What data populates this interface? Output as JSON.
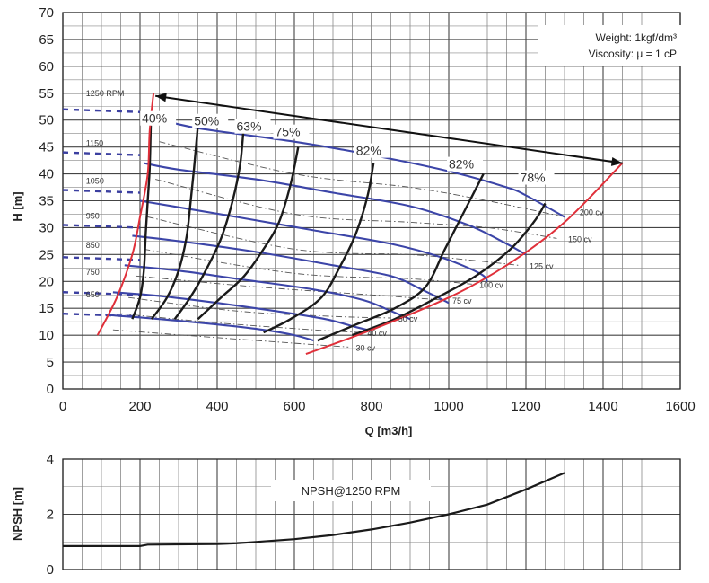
{
  "chart_data": [
    {
      "type": "line",
      "title": "",
      "xlabel": "Q [m3/h]",
      "ylabel": "H [m]",
      "xlim": [
        0,
        1600
      ],
      "ylim": [
        0,
        70
      ],
      "x_ticks": [
        "0",
        "200",
        "400",
        "600",
        "800",
        "1000",
        "1200",
        "1400",
        "1600"
      ],
      "y_ticks": [
        "0",
        "5",
        "10",
        "15",
        "20",
        "25",
        "30",
        "35",
        "40",
        "45",
        "50",
        "55",
        "60",
        "65",
        "70"
      ],
      "grid": true,
      "annotation": {
        "line1": "Weight: 1kgf/dm³",
        "line2": "Viscosity: μ = 1 cP"
      },
      "speed_curves": [
        {
          "name": "1250 RPM",
          "points": [
            [
              230,
              50.5
            ],
            [
              350,
              48.5
            ],
            [
              600,
              46
            ],
            [
              800,
              43.5
            ],
            [
              1000,
              40.5
            ],
            [
              1150,
              37.5
            ],
            [
              1200,
              36
            ],
            [
              1300,
              32
            ]
          ]
        },
        {
          "name": "1150",
          "points": [
            [
              210,
              42
            ],
            [
              300,
              40.8
            ],
            [
              500,
              39
            ],
            [
              700,
              36.5
            ],
            [
              900,
              34
            ],
            [
              1050,
              30.5
            ],
            [
              1150,
              27
            ],
            [
              1200,
              25
            ]
          ]
        },
        {
          "name": "1050",
          "points": [
            [
              200,
              35
            ],
            [
              300,
              33.8
            ],
            [
              450,
              32
            ],
            [
              650,
              29.5
            ],
            [
              850,
              27
            ],
            [
              980,
              24.5
            ],
            [
              1080,
              21.5
            ],
            [
              1100,
              20
            ]
          ]
        },
        {
          "name": "950",
          "points": [
            [
              180,
              28.5
            ],
            [
              300,
              27.5
            ],
            [
              500,
              25.5
            ],
            [
              700,
              23
            ],
            [
              850,
              21
            ],
            [
              930,
              18.5
            ],
            [
              1000,
              16
            ]
          ]
        },
        {
          "name": "850",
          "points": [
            [
              160,
              23
            ],
            [
              300,
              22
            ],
            [
              450,
              20.5
            ],
            [
              650,
              18.5
            ],
            [
              780,
              16.5
            ],
            [
              850,
              14.5
            ],
            [
              900,
              13
            ]
          ]
        },
        {
          "name": "750",
          "points": [
            [
              130,
              18
            ],
            [
              250,
              17.3
            ],
            [
              400,
              16
            ],
            [
              550,
              14.5
            ],
            [
              680,
              13
            ],
            [
              760,
              11.5
            ],
            [
              790,
              11
            ]
          ]
        },
        {
          "name": "650",
          "points": [
            [
              110,
              13.8
            ],
            [
              250,
              13
            ],
            [
              400,
              12
            ],
            [
              520,
              11
            ],
            [
              600,
              10
            ],
            [
              650,
              9
            ]
          ]
        }
      ],
      "efficiency_curves": [
        {
          "name": "40%",
          "points": [
            [
              180,
              13
            ],
            [
              200,
              17
            ],
            [
              210,
              22
            ],
            [
              215,
              29
            ],
            [
              220,
              35
            ],
            [
              225,
              41
            ],
            [
              228,
              49
            ]
          ]
        },
        {
          "name": "50%",
          "points": [
            [
              230,
              13
            ],
            [
              270,
              17
            ],
            [
              300,
              22
            ],
            [
              320,
              28
            ],
            [
              330,
              34
            ],
            [
              340,
              41
            ],
            [
              350,
              49
            ]
          ]
        },
        {
          "name": "63%",
          "points": [
            [
              290,
              13
            ],
            [
              330,
              17
            ],
            [
              370,
              22
            ],
            [
              410,
              28
            ],
            [
              440,
              35
            ],
            [
              460,
              42
            ],
            [
              470,
              50
            ]
          ]
        },
        {
          "name": "75%",
          "points": [
            [
              350,
              13
            ],
            [
              410,
              17
            ],
            [
              470,
              21
            ],
            [
              520,
              26
            ],
            [
              560,
              31
            ],
            [
              590,
              38
            ],
            [
              610,
              45
            ]
          ]
        },
        {
          "name": "82%",
          "points": [
            [
              520,
              10.5
            ],
            [
              590,
              13
            ],
            [
              670,
              17
            ],
            [
              720,
              23
            ],
            [
              760,
              29
            ],
            [
              790,
              36
            ],
            [
              805,
              42
            ]
          ]
        },
        {
          "name": "82%",
          "points": [
            [
              660,
              9
            ],
            [
              760,
              12
            ],
            [
              860,
              15
            ],
            [
              940,
              19
            ],
            [
              990,
              26
            ],
            [
              1040,
              33
            ],
            [
              1090,
              40
            ]
          ]
        },
        {
          "name": "78%",
          "points": [
            [
              750,
              10
            ],
            [
              860,
              13
            ],
            [
              970,
              17
            ],
            [
              1070,
              21
            ],
            [
              1160,
              26
            ],
            [
              1220,
              31
            ],
            [
              1250,
              34.5
            ]
          ]
        }
      ],
      "power_lines": [
        {
          "name": "200 cv",
          "label_at": [
            1330,
            33
          ],
          "points": [
            [
              250,
              46
            ],
            [
              600,
              40
            ],
            [
              900,
              37.5
            ],
            [
              1100,
              35
            ],
            [
              1300,
              32
            ]
          ]
        },
        {
          "name": "150 cv",
          "label_at": [
            1300,
            28
          ],
          "points": [
            [
              240,
              39
            ],
            [
              600,
              32.5
            ],
            [
              900,
              31
            ],
            [
              1100,
              30
            ],
            [
              1280,
              28
            ]
          ]
        },
        {
          "name": "125 cv",
          "label_at": [
            1200,
            23
          ],
          "points": [
            [
              220,
              32
            ],
            [
              600,
              26
            ],
            [
              900,
              25
            ],
            [
              1050,
              24
            ],
            [
              1180,
              23
            ]
          ]
        },
        {
          "name": "100 cv",
          "label_at": [
            1070,
            19.5
          ],
          "points": [
            [
              210,
              26
            ],
            [
              600,
              21.5
            ],
            [
              900,
              20.5
            ],
            [
              1060,
              19.5
            ]
          ]
        },
        {
          "name": "75 cv",
          "label_at": [
            1000,
            16.5
          ],
          "points": [
            [
              190,
              21
            ],
            [
              500,
              19
            ],
            [
              800,
              17.5
            ],
            [
              990,
              16.5
            ]
          ]
        },
        {
          "name": "50 cv",
          "label_at": [
            860,
            13.2
          ],
          "points": [
            [
              170,
              17
            ],
            [
              450,
              14.5
            ],
            [
              700,
              13.5
            ],
            [
              850,
              13.2
            ]
          ]
        },
        {
          "name": "40 cv",
          "label_at": [
            780,
            10.5
          ],
          "points": [
            [
              150,
              14
            ],
            [
              400,
              12.3
            ],
            [
              650,
              11
            ],
            [
              770,
              10.5
            ]
          ]
        },
        {
          "name": "30 cv",
          "label_at": [
            750,
            7.8
          ],
          "points": [
            [
              130,
              11
            ],
            [
              350,
              9.8
            ],
            [
              600,
              8.5
            ],
            [
              740,
              7.8
            ]
          ]
        }
      ],
      "operating_limits": {
        "left": [
          [
            90,
            10
          ],
          [
            140,
            17
          ],
          [
            180,
            25
          ],
          [
            200,
            32
          ],
          [
            220,
            40
          ],
          [
            225,
            48
          ],
          [
            235,
            55
          ]
        ],
        "right": [
          [
            630,
            6.5
          ],
          [
            800,
            11
          ],
          [
            1000,
            17
          ],
          [
            1150,
            23
          ],
          [
            1300,
            31
          ],
          [
            1450,
            42
          ]
        ]
      },
      "arrow": {
        "from": [
          240,
          54.5
        ],
        "to": [
          1450,
          42
        ]
      },
      "dashed_stubs_y": [
        52,
        44,
        37,
        30.5,
        24.5,
        18,
        14
      ]
    },
    {
      "type": "line",
      "title": "",
      "xlabel": "",
      "ylabel": "NPSH [m]",
      "xlim": [
        0,
        1600
      ],
      "ylim": [
        0,
        4
      ],
      "y_ticks": [
        "0",
        "2",
        "4"
      ],
      "grid": true,
      "series": [
        {
          "name": "NPSH@1250 RPM",
          "x": [
            0,
            200,
            220,
            400,
            450,
            500,
            600,
            700,
            800,
            900,
            1000,
            1100,
            1200,
            1300
          ],
          "y": [
            0.85,
            0.85,
            0.9,
            0.92,
            0.95,
            1.0,
            1.1,
            1.25,
            1.45,
            1.7,
            2.0,
            2.35,
            2.9,
            3.5
          ]
        }
      ]
    }
  ]
}
